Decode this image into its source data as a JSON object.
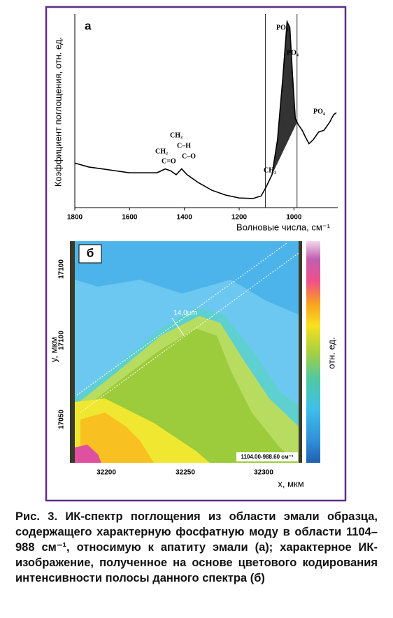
{
  "chart_data": {
    "type": "line",
    "panel_label": "а",
    "x_label": "Волновые числа, см⁻¹",
    "y_label": "Коэффициент поглощения, отн. ед.",
    "x": [
      1800,
      1750,
      1700,
      1650,
      1600,
      1550,
      1500,
      1470,
      1450,
      1430,
      1410,
      1390,
      1350,
      1300,
      1250,
      1200,
      1150,
      1120,
      1104,
      1080,
      1060,
      1040,
      1025,
      1015,
      1005,
      995,
      985,
      970,
      960,
      945,
      930,
      910,
      890,
      870,
      855,
      845
    ],
    "values": [
      0.23,
      0.21,
      0.2,
      0.19,
      0.18,
      0.18,
      0.18,
      0.2,
      0.19,
      0.17,
      0.2,
      0.17,
      0.13,
      0.09,
      0.065,
      0.05,
      0.047,
      0.06,
      0.1,
      0.17,
      0.35,
      0.68,
      0.96,
      0.93,
      0.68,
      0.46,
      0.43,
      0.4,
      0.37,
      0.33,
      0.35,
      0.39,
      0.4,
      0.44,
      0.48,
      0.49
    ],
    "color": "#000000",
    "band_color": "#333333",
    "xlim": [
      1800,
      840
    ],
    "ylim": [
      0,
      1
    ],
    "xticks": [
      1800,
      1600,
      1400,
      1200,
      1000
    ],
    "vlines": [
      1104,
      988.6
    ],
    "annotations": [
      "PO₄",
      "PO₄",
      "PO₄",
      "CH₂",
      "CH₃",
      "C–H",
      "CH₂",
      "C=O",
      "C–O"
    ]
  },
  "panel_b": {
    "label": "б",
    "x_label": "x, мкм",
    "y_label": "y, мкм",
    "colorbar_label": "отн. ед.",
    "x_ticks": [
      "32200",
      "32250",
      "32300"
    ],
    "y_ticks": [
      "17100",
      "17100",
      "17050"
    ],
    "scale_label": "14,0µm",
    "band_label": "1104.00-988.60 см⁻¹"
  },
  "caption": "Рис. 3. ИК-спектр поглощения из области эмали образца, содержащего характерную фосфатную моду в области 1104–988 см⁻¹, относимую к апатиту эмали (а); характерное ИК-изображение, полученное на основе цветового кодирования интенсивности полосы данного спектра (б)"
}
